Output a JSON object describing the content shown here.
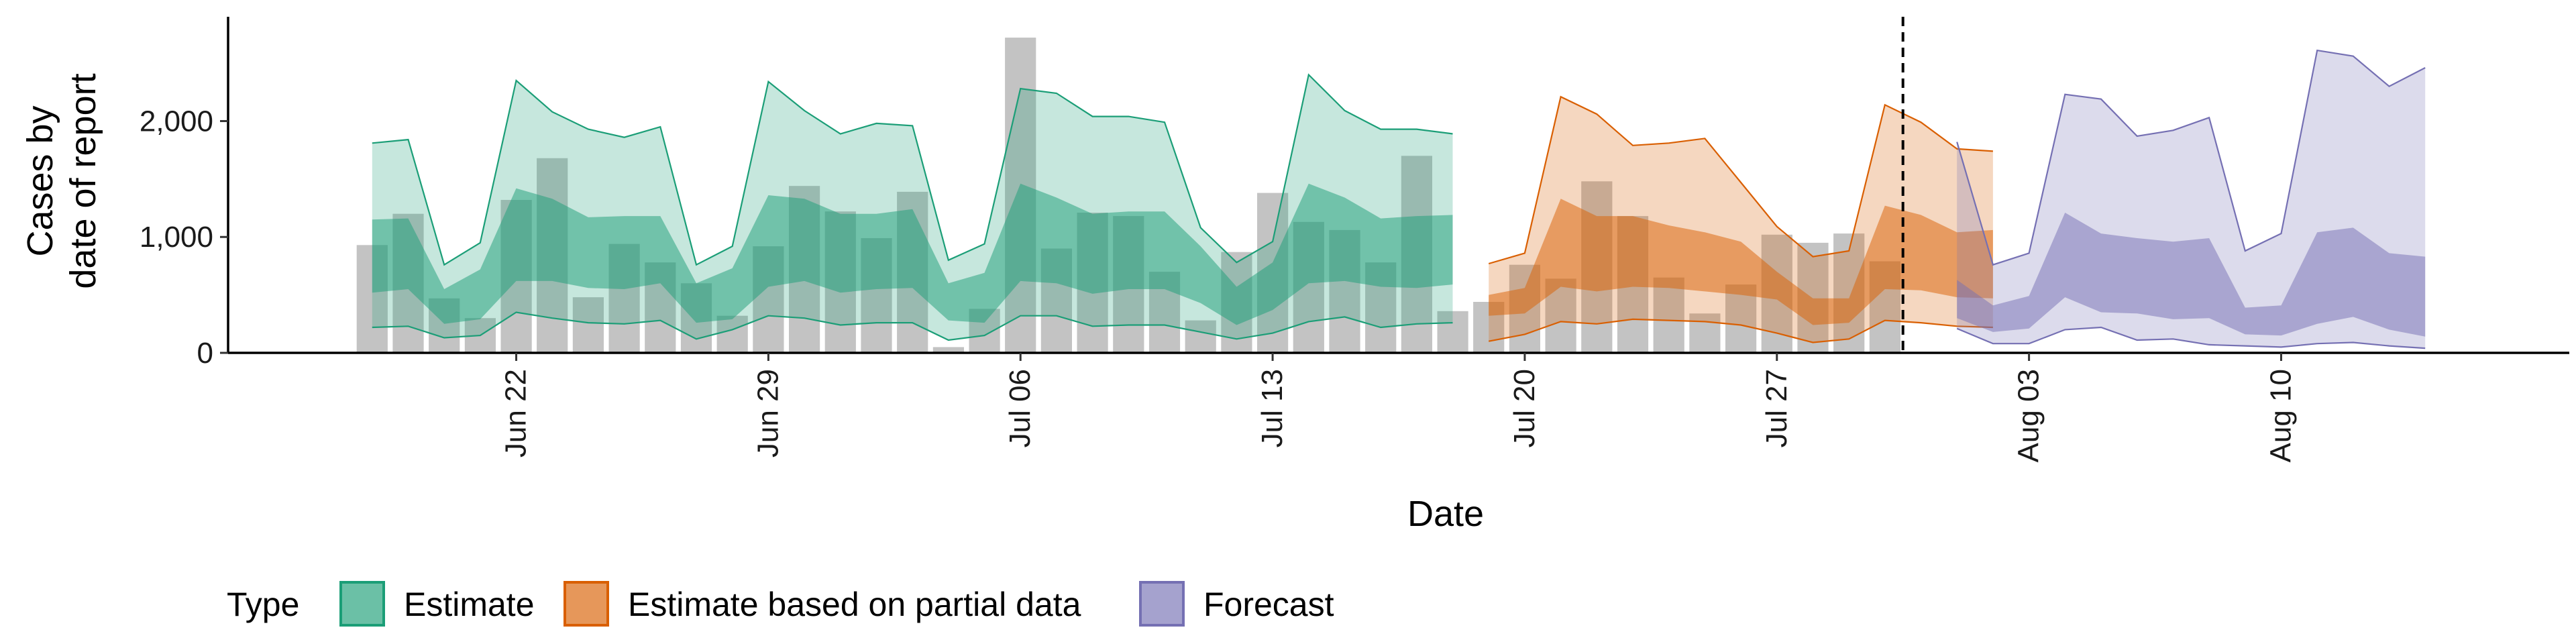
{
  "chart_data": {
    "type": "area",
    "xlabel": "Date",
    "ylabel_lines": [
      "Cases by",
      "date of report"
    ],
    "ylim": [
      0,
      2900
    ],
    "y_ticks": [
      0,
      1000,
      2000
    ],
    "y_tick_labels": [
      "0",
      "1,000",
      "2,000"
    ],
    "x_ticks": [
      "2020-06-22",
      "2020-06-29",
      "2020-07-06",
      "2020-07-13",
      "2020-07-20",
      "2020-07-27",
      "2020-08-03",
      "2020-08-10"
    ],
    "x_tick_labels": [
      "Jun 22",
      "Jun 29",
      "Jul 06",
      "Jul 13",
      "Jul 20",
      "Jul 27",
      "Aug 03",
      "Aug 10"
    ],
    "xlim": [
      "2020-06-14",
      "2020-08-18"
    ],
    "cutoff_date": "2020-07-31",
    "colors": {
      "Estimate": "#1b9e77",
      "Estimate based on partial data": "#d95f02",
      "Forecast": "#7570b3",
      "bars": "#bdbdbd"
    },
    "legend": {
      "title": "Type",
      "position": "bottom",
      "items": [
        "Estimate",
        "Estimate based on partial data",
        "Forecast"
      ]
    },
    "reported_cases": {
      "start": "2020-06-18",
      "values": [
        930,
        1200,
        470,
        300,
        1320,
        1680,
        480,
        940,
        780,
        600,
        320,
        920,
        1440,
        1220,
        990,
        1390,
        50,
        380,
        2720,
        900,
        1210,
        1180,
        700,
        280,
        870,
        1380,
        1130,
        1060,
        780,
        1700,
        360,
        440,
        760,
        640,
        1480,
        1180,
        650,
        340,
        590,
        1020,
        950,
        1030,
        790
      ]
    },
    "series": [
      {
        "name": "Estimate",
        "start": "2020-06-18",
        "lower90": [
          220,
          230,
          130,
          150,
          350,
          300,
          260,
          250,
          280,
          120,
          200,
          320,
          300,
          240,
          260,
          260,
          110,
          150,
          320,
          320,
          230,
          240,
          240,
          180,
          120,
          170,
          270,
          310,
          220,
          250,
          260
        ],
        "lower50": [
          520,
          550,
          250,
          290,
          620,
          620,
          560,
          550,
          600,
          260,
          290,
          570,
          620,
          520,
          550,
          560,
          280,
          260,
          620,
          600,
          510,
          550,
          550,
          430,
          240,
          370,
          600,
          620,
          570,
          560,
          590
        ],
        "upper50": [
          1150,
          1160,
          550,
          720,
          1420,
          1330,
          1170,
          1180,
          1180,
          600,
          730,
          1360,
          1330,
          1200,
          1200,
          1240,
          600,
          690,
          1460,
          1340,
          1200,
          1220,
          1220,
          920,
          570,
          780,
          1460,
          1340,
          1160,
          1180,
          1190
        ],
        "upper90": [
          1810,
          1840,
          760,
          950,
          2350,
          2080,
          1930,
          1860,
          1950,
          760,
          920,
          2340,
          2090,
          1890,
          1980,
          1960,
          800,
          940,
          2280,
          2240,
          2040,
          2040,
          1990,
          1080,
          780,
          960,
          2400,
          2090,
          1930,
          1930,
          1890
        ]
      },
      {
        "name": "Estimate based on partial data",
        "start": "2020-07-19",
        "lower90": [
          100,
          160,
          270,
          250,
          290,
          280,
          270,
          240,
          170,
          90,
          120,
          280,
          260,
          230,
          220
        ],
        "lower50": [
          320,
          340,
          570,
          530,
          570,
          560,
          530,
          500,
          460,
          240,
          260,
          550,
          540,
          480,
          470
        ],
        "upper50": [
          500,
          560,
          1330,
          1180,
          1180,
          1100,
          1040,
          960,
          700,
          470,
          470,
          1270,
          1190,
          1040,
          1060
        ],
        "upper90": [
          770,
          860,
          2210,
          2060,
          1790,
          1810,
          1850,
          1470,
          1090,
          830,
          880,
          2140,
          1990,
          1760,
          1740
        ]
      },
      {
        "name": "Forecast",
        "start": "2020-08-01",
        "lower90": [
          210,
          80,
          80,
          200,
          220,
          110,
          120,
          70,
          60,
          50,
          80,
          90,
          60,
          40
        ],
        "lower50": [
          300,
          180,
          210,
          480,
          350,
          340,
          290,
          300,
          160,
          150,
          250,
          310,
          200,
          140
        ],
        "upper50": [
          630,
          410,
          490,
          1210,
          1030,
          990,
          960,
          990,
          390,
          410,
          1040,
          1080,
          860,
          830
        ],
        "upper90": [
          1820,
          760,
          860,
          2230,
          2190,
          1870,
          1920,
          2030,
          880,
          1030,
          2610,
          2560,
          2300,
          2460
        ]
      }
    ]
  }
}
